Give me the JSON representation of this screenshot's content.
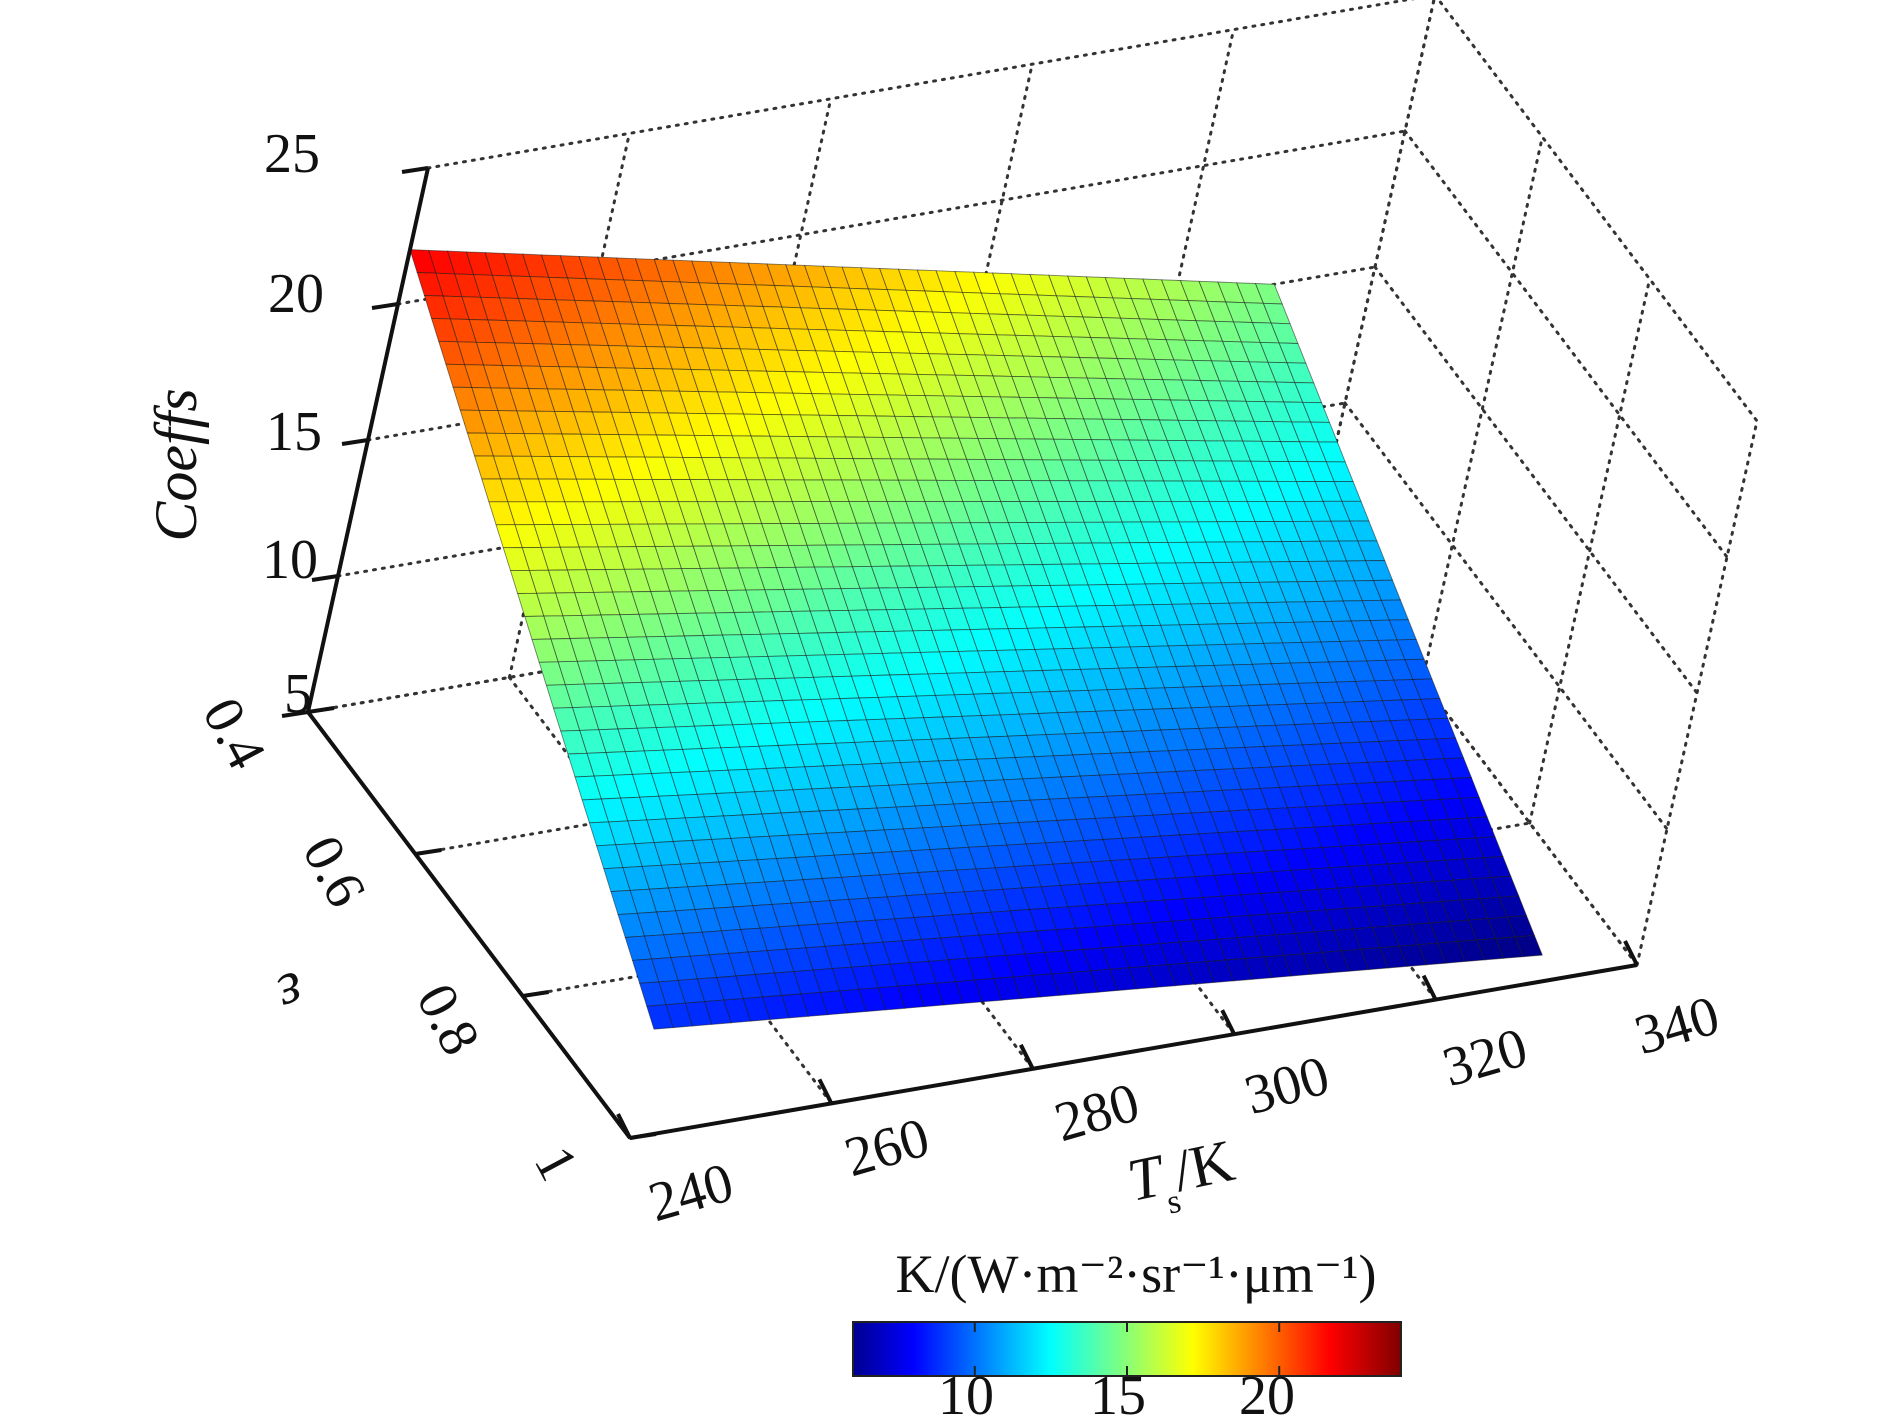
{
  "chart_data": {
    "type": "surface",
    "zlabel": "Coeffs",
    "ylabel": "ε",
    "xlabel": {
      "main": "T",
      "subscript": "s",
      "suffix": "/K"
    },
    "x_ticks": [
      "240",
      "260",
      "280",
      "300",
      "320",
      "340"
    ],
    "y_ticks": [
      "0.4",
      "0.6",
      "0.8",
      "1"
    ],
    "z_ticks": [
      "5",
      "10",
      "15",
      "20",
      "25"
    ],
    "xlim": [
      240,
      340
    ],
    "ylim": [
      0.4,
      1
    ],
    "zlim": [
      5,
      25
    ],
    "grid": true,
    "surface": {
      "x_range": [
        240,
        330
      ],
      "y_range": [
        0.4,
        1
      ],
      "corner_values": {
        "T240_eps0.4": 22,
        "T330_eps0.4": 15,
        "T240_eps1": 9,
        "T330_eps1": 6
      }
    },
    "colorbar": {
      "label": "K/(W·m⁻²·sr⁻¹·μm⁻¹)",
      "ticks": [
        "10",
        "15",
        "20"
      ],
      "range": [
        6,
        24
      ],
      "colormap": "jet",
      "orientation": "horizontal",
      "placement": "bottom"
    }
  }
}
